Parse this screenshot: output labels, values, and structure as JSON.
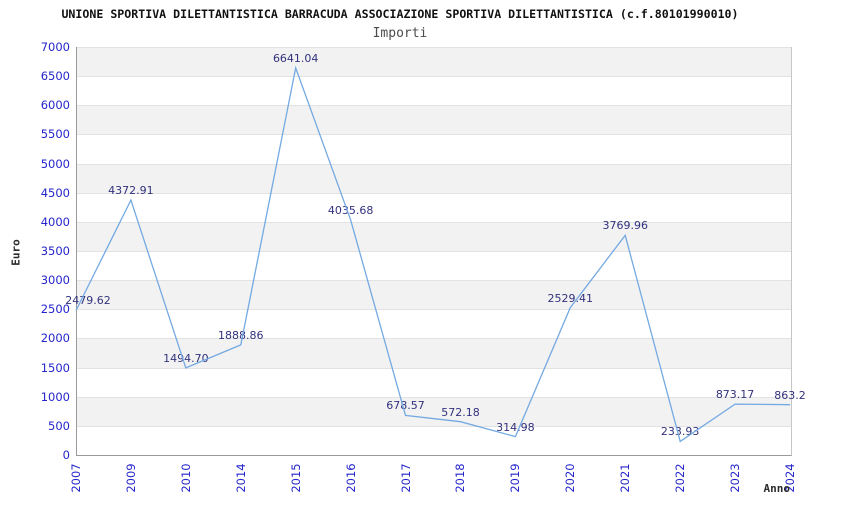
{
  "header": {
    "title": "UNIONE SPORTIVA DILETTANTISTICA BARRACUDA ASSOCIAZIONE SPORTIVA DILETTANTISTICA (c.f.80101990010)",
    "subtitle": "Importi"
  },
  "chart_data": {
    "type": "line",
    "title": "Importi",
    "xlabel": "Anno",
    "ylabel": "Euro",
    "categories": [
      "2007",
      "2009",
      "2010",
      "2014",
      "2015",
      "2016",
      "2017",
      "2018",
      "2019",
      "2020",
      "2021",
      "2022",
      "2023",
      "2024"
    ],
    "values": [
      2479.62,
      4372.91,
      1494.7,
      1888.86,
      6641.04,
      4035.68,
      678.57,
      572.18,
      314.98,
      2529.41,
      3769.96,
      233.93,
      873.17,
      863.2
    ],
    "data_labels": [
      "2479.62",
      "4372.91",
      "1494.70",
      "1888.86",
      "6641.04",
      "4035.68",
      "678.57",
      "572.18",
      "314.98",
      "2529.41",
      "3769.96",
      "233.93",
      "873.17",
      "863.2"
    ],
    "ylim": [
      0,
      7000
    ],
    "ytick_step": 500,
    "grid": "alternating-horizontal-bands",
    "legend": "none",
    "colors": {
      "line": "#74a9e2",
      "tick_label": "#2525cb",
      "data_label": "#32327d",
      "band_gray": "#f2f2f2",
      "band_white": "#ffffff",
      "gridline": "#e2e2e2",
      "axis": "#9a9a9a",
      "title": "#111111",
      "subtitle": "#4d4d4d",
      "axis_title": "#2b2b2b"
    }
  }
}
